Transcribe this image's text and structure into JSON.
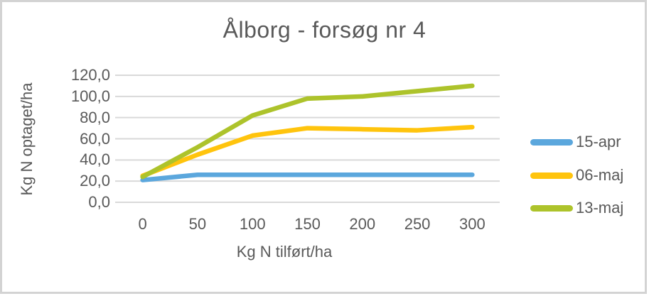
{
  "window": {
    "background": "#ffffff",
    "frame_border_color": "#d3d3d3"
  },
  "chart_data": {
    "type": "line",
    "title": "Ålborg - forsøg nr 4",
    "xlabel": "Kg N tilført/ha",
    "ylabel": "Kg N optaget/ha",
    "categories": [
      "0",
      "50",
      "100",
      "150",
      "200",
      "250",
      "300"
    ],
    "series": [
      {
        "name": "15-apr",
        "color": "#5BA7DD",
        "values": [
          21,
          26,
          26,
          26,
          26,
          26,
          26
        ]
      },
      {
        "name": "06-maj",
        "color": "#FFC40D",
        "values": [
          25,
          45,
          63,
          70,
          69,
          68,
          71
        ]
      },
      {
        "name": "13-maj",
        "color": "#ADC32B",
        "values": [
          24,
          52,
          82,
          98,
          100,
          105,
          110
        ]
      }
    ],
    "ylim": [
      0,
      120
    ],
    "ytick_step": 20,
    "ytick_labels": [
      "0,0",
      "20,0",
      "40,0",
      "60,0",
      "80,0",
      "100,0",
      "120,0"
    ],
    "grid": true,
    "gridline_color": "#D9D9D9",
    "text_color": "#595959",
    "legend_position": "right"
  }
}
